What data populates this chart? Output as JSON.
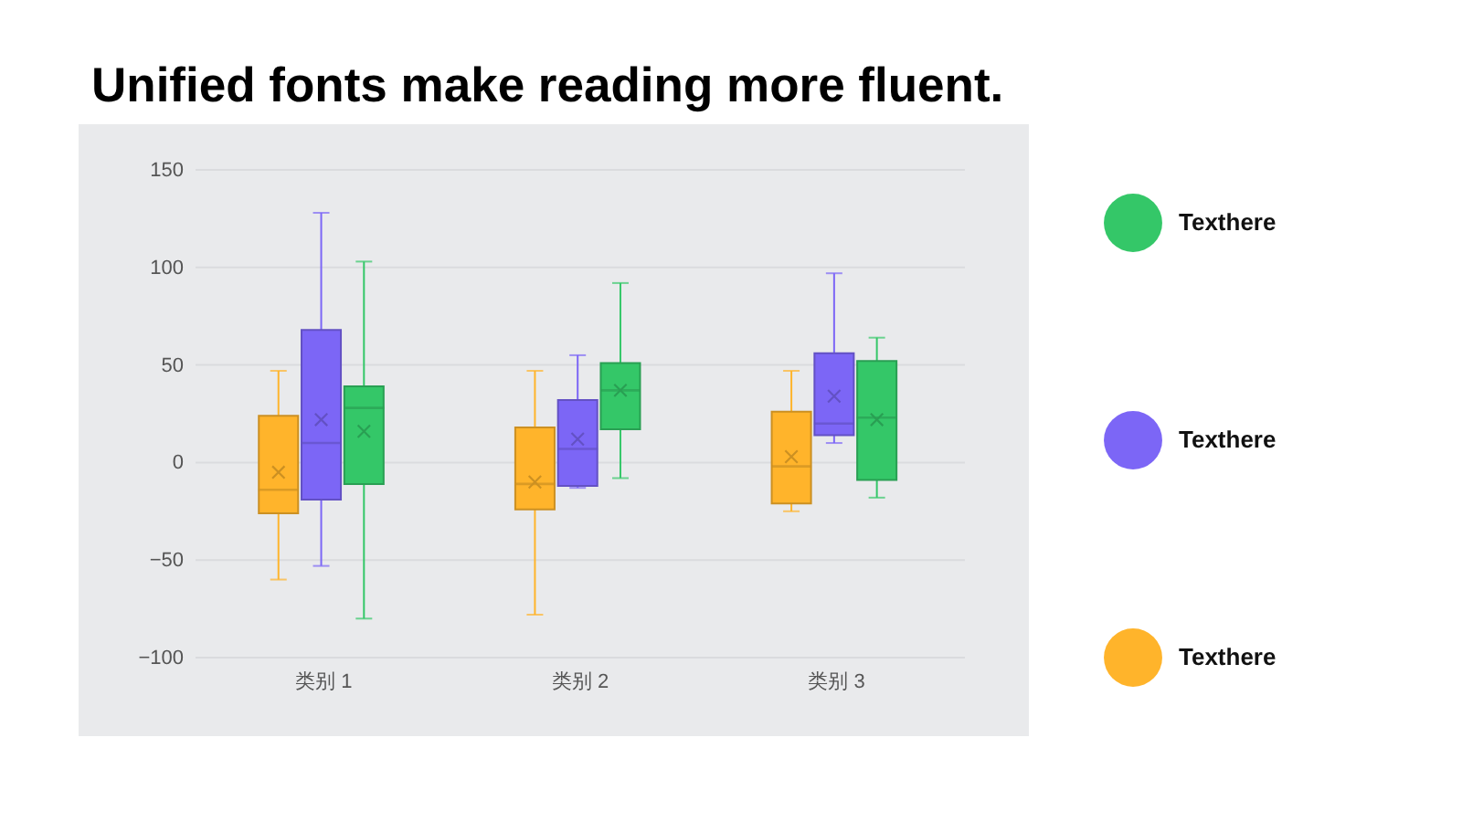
{
  "chart_data": {
    "type": "box",
    "title": "Unified fonts make reading more fluent.",
    "categories": [
      "类别 1",
      "类别 2",
      "类别 3"
    ],
    "series": [
      {
        "name": "Texthere",
        "color": "#ffb42b",
        "boxes": [
          {
            "low": -60,
            "q1": -26,
            "median": -14,
            "q3": 24,
            "high": 47,
            "mean": -5
          },
          {
            "low": -78,
            "q1": -24,
            "median": -11,
            "q3": 18,
            "high": 47,
            "mean": -10
          },
          {
            "low": -25,
            "q1": -21,
            "median": -2,
            "q3": 26,
            "high": 47,
            "mean": 3
          }
        ]
      },
      {
        "name": "Texthere",
        "color": "#7c66f6",
        "boxes": [
          {
            "low": -53,
            "q1": -19,
            "median": 10,
            "q3": 68,
            "high": 128,
            "mean": 22
          },
          {
            "low": -13,
            "q1": -12,
            "median": 7,
            "q3": 32,
            "high": 55,
            "mean": 12
          },
          {
            "low": 10,
            "q1": 14,
            "median": 20,
            "q3": 56,
            "high": 97,
            "mean": 34
          }
        ]
      },
      {
        "name": "Texthere",
        "color": "#34c768",
        "boxes": [
          {
            "low": -80,
            "q1": -11,
            "median": 28,
            "q3": 39,
            "high": 103,
            "mean": 16
          },
          {
            "low": -8,
            "q1": 17,
            "median": 37,
            "q3": 51,
            "high": 92,
            "mean": 37
          },
          {
            "low": -18,
            "q1": -9,
            "median": 23,
            "q3": 52,
            "high": 64,
            "mean": 22
          }
        ]
      }
    ],
    "ylim": [
      -100,
      150
    ],
    "yticks": [
      -100,
      -50,
      0,
      50,
      100,
      150
    ],
    "grid": "y",
    "legend": "right"
  }
}
